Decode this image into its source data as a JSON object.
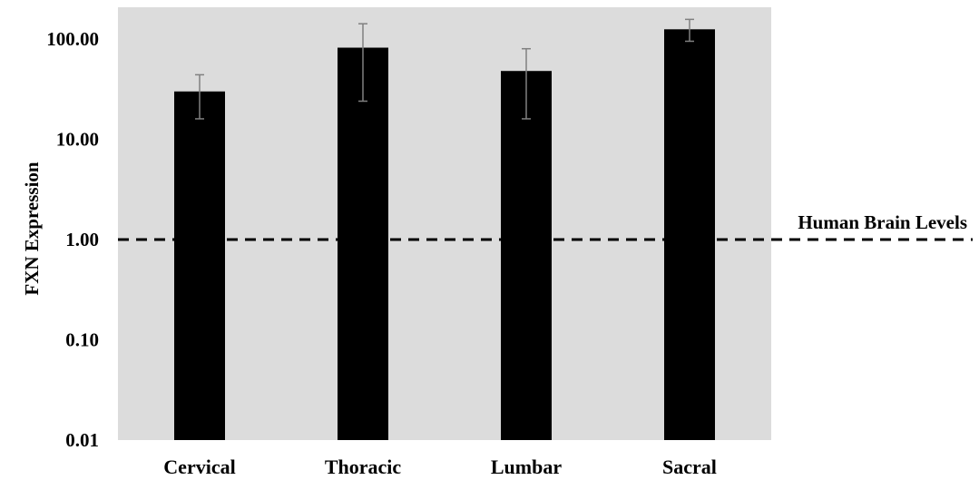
{
  "chart_data": {
    "type": "bar",
    "title": "",
    "xlabel": "",
    "ylabel": "FXN Expression",
    "yscale": "log",
    "ylim": [
      0.01,
      200
    ],
    "ytick_values": [
      0.01,
      0.1,
      1,
      10,
      100
    ],
    "ytick_labels": [
      "0.01",
      "0.10",
      "1.00",
      "10.00",
      "100.00"
    ],
    "categories": [
      "Cervical",
      "Thoracic",
      "Lumbar",
      "Sacral"
    ],
    "values": [
      30,
      82,
      48,
      125
    ],
    "error_low": [
      16,
      24,
      16,
      95
    ],
    "error_high": [
      44,
      142,
      80,
      157
    ],
    "grid": false,
    "colors": {
      "bar": "#000000",
      "plot_background": "#dcdcdc",
      "error_bar": "#808080",
      "reference_line": "#000000"
    },
    "reference_line": {
      "value": 1,
      "label": "Human Brain Levels",
      "style": "dashed"
    }
  }
}
